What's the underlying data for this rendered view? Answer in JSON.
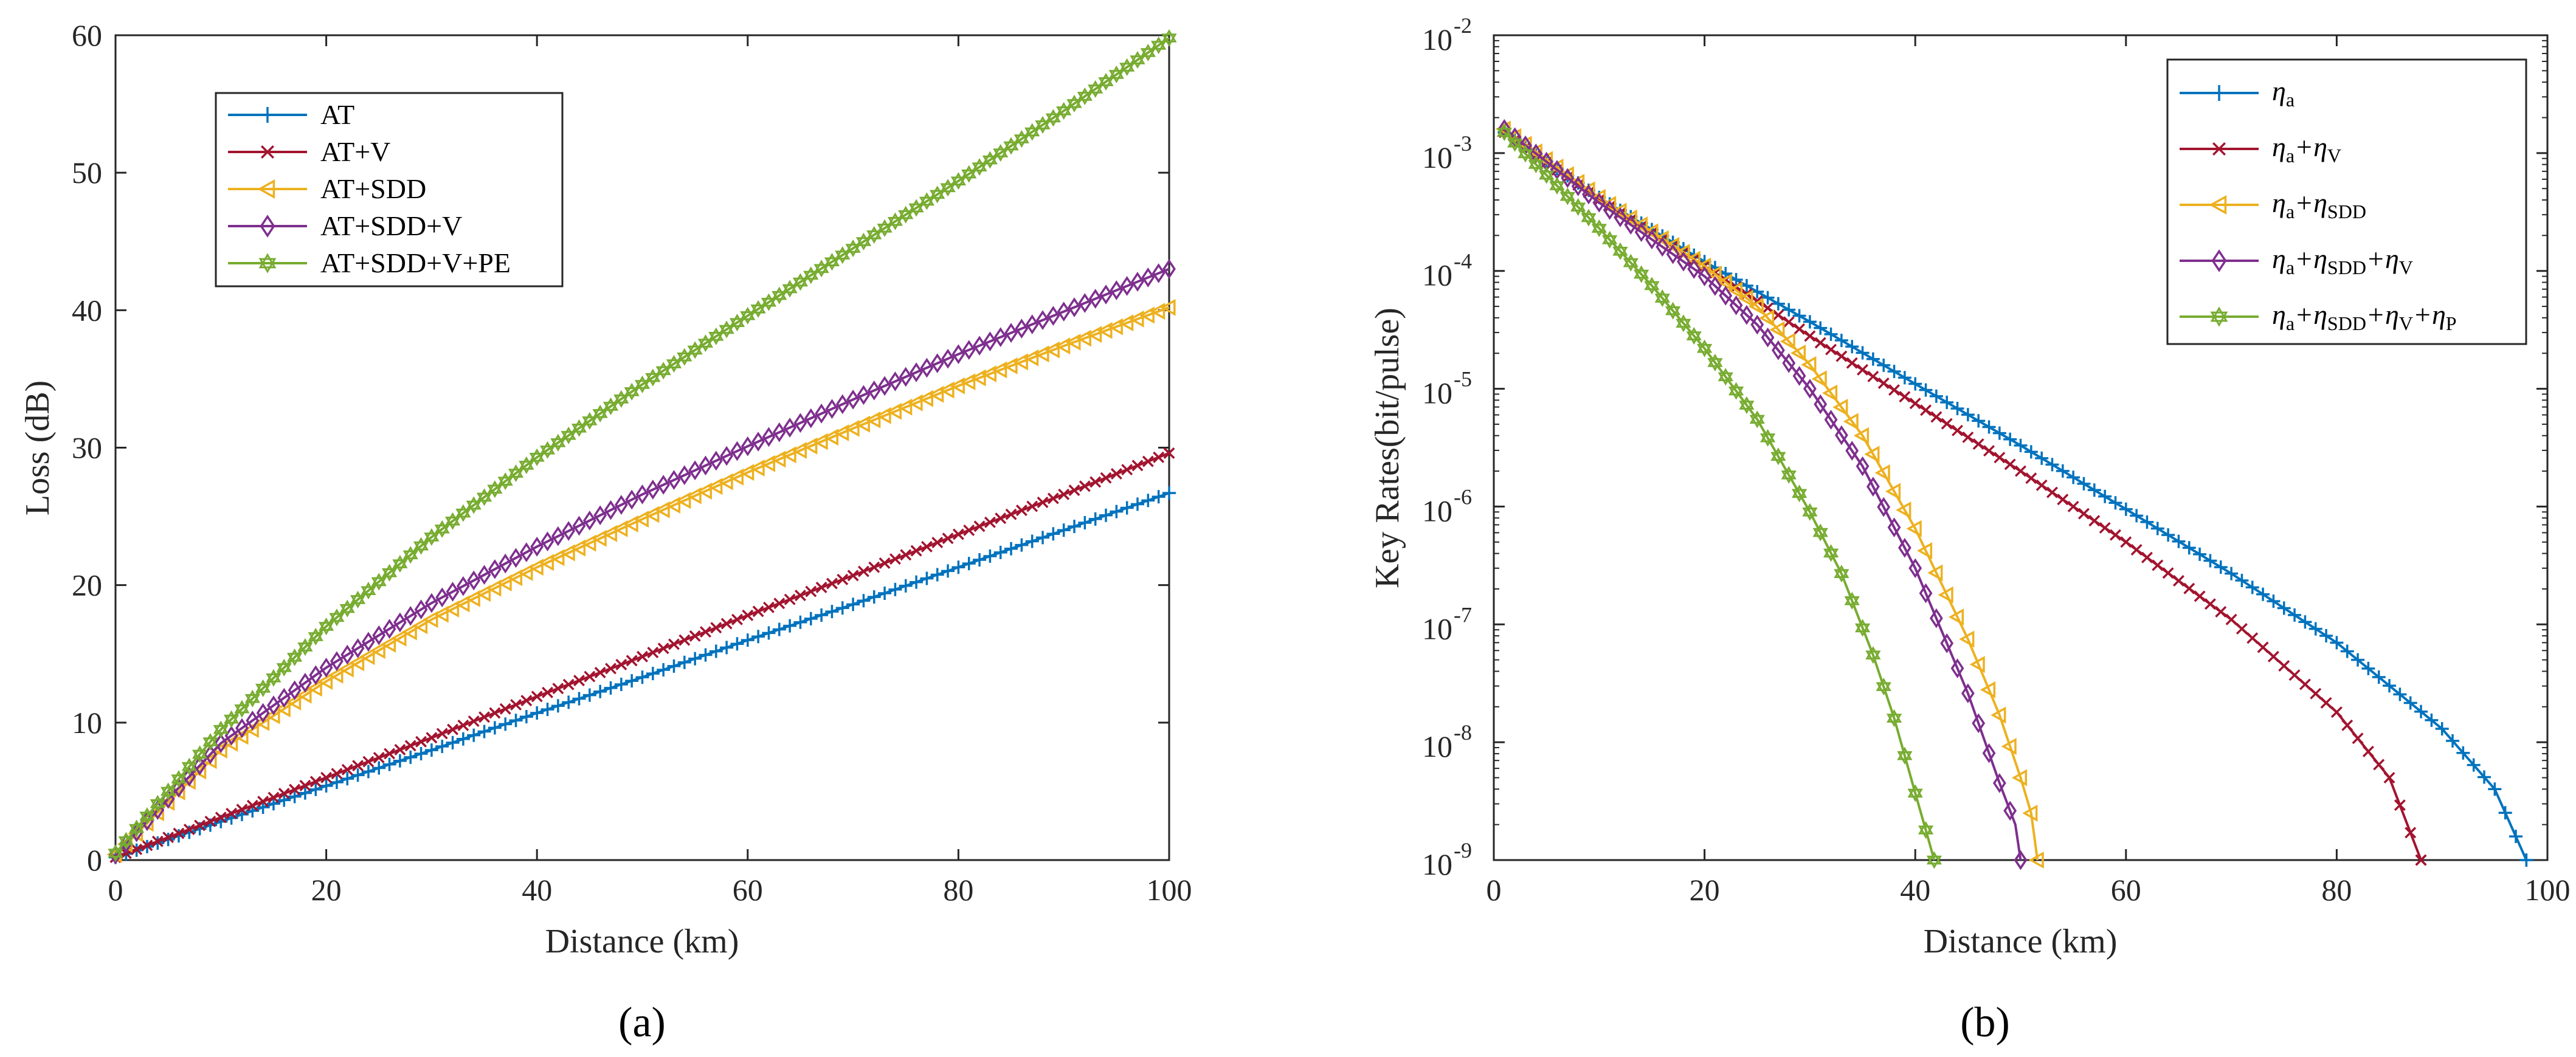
{
  "panels": {
    "a": {
      "label": "(a)"
    },
    "b": {
      "label": "(b)"
    }
  },
  "chart_data": [
    {
      "id": "a",
      "type": "line",
      "xlabel": "Distance (km)",
      "ylabel": "Loss (dB)",
      "xlim": [
        0,
        100
      ],
      "ylim": [
        0,
        60
      ],
      "xticks": [
        "0",
        "20",
        "40",
        "60",
        "80",
        "100"
      ],
      "yticks": [
        "0",
        "10",
        "20",
        "30",
        "40",
        "50",
        "60"
      ],
      "legend_position": "top-left",
      "x": [
        0,
        10,
        20,
        30,
        40,
        50,
        60,
        70,
        80,
        90,
        100
      ],
      "series": [
        {
          "name": "AT",
          "color": "#0072BD",
          "marker": "plus",
          "values": [
            0.2,
            2.8,
            5.4,
            8.0,
            10.7,
            13.3,
            16.0,
            18.6,
            21.3,
            24.0,
            26.7
          ]
        },
        {
          "name": "AT+V",
          "color": "#A2142F",
          "marker": "cross",
          "values": [
            0.2,
            3.1,
            6.0,
            8.9,
            11.9,
            14.8,
            17.8,
            20.7,
            23.7,
            26.6,
            29.6
          ]
        },
        {
          "name": "AT+SDD",
          "color": "#EDB120",
          "marker": "triangle-left",
          "values": [
            0.4,
            8.0,
            13.0,
            17.5,
            21.3,
            24.8,
            28.2,
            31.4,
            34.5,
            37.4,
            40.2
          ]
        },
        {
          "name": "AT+SDD+V",
          "color": "#7E2F8E",
          "marker": "diamond",
          "values": [
            0.4,
            8.5,
            14.0,
            18.7,
            22.8,
            26.6,
            30.1,
            33.5,
            36.8,
            39.9,
            43.0
          ]
        },
        {
          "name": "AT+SDD+V+PE",
          "color": "#77AC30",
          "marker": "hexagram",
          "values": [
            0.5,
            9.5,
            17.0,
            23.5,
            29.3,
            34.6,
            39.6,
            44.5,
            49.4,
            54.5,
            59.8
          ]
        }
      ]
    },
    {
      "id": "b",
      "type": "line",
      "xlabel": "Distance (km)",
      "ylabel": "Key Rates(bit/pulse)",
      "xlim": [
        0,
        100
      ],
      "ylim": [
        1e-09,
        0.01
      ],
      "yscale": "log",
      "xticks": [
        "0",
        "20",
        "40",
        "60",
        "80",
        "100"
      ],
      "ytick_exponents": [
        "-9",
        "-8",
        "-7",
        "-6",
        "-5",
        "-4",
        "-3",
        "-2"
      ],
      "ytick_base": "10",
      "legend_position": "top-right",
      "series": [
        {
          "name_base": "η",
          "name_sub": "a",
          "color": "#0072BD",
          "marker": "plus",
          "x": [
            1,
            10,
            20,
            30,
            40,
            50,
            60,
            70,
            80,
            90,
            95,
            98
          ],
          "values": [
            0.0015,
            0.00042,
            0.00012,
            3.7e-05,
            1.1e-05,
            3.3e-06,
            9.5e-07,
            2.7e-07,
            7e-08,
            1.3e-08,
            4e-09,
            1e-09
          ]
        },
        {
          "name_base": "η",
          "name_sub": "a",
          "name_extra": "+η",
          "name_extra_sub": "V",
          "color": "#A2142F",
          "marker": "cross",
          "x": [
            1,
            10,
            20,
            30,
            40,
            50,
            60,
            70,
            80,
            85,
            88
          ],
          "values": [
            0.0015,
            0.0004,
            0.00011,
            2.8e-05,
            7.5e-06,
            2e-06,
            5e-07,
            1.1e-07,
            1.8e-08,
            5e-09,
            1e-09
          ]
        },
        {
          "name_base": "η",
          "name_sub": "a",
          "name_extra": "+η",
          "name_extra_sub": "SDD",
          "color": "#EDB120",
          "marker": "triangle-left",
          "x": [
            1,
            10,
            20,
            25,
            30,
            35,
            40,
            45,
            48,
            50,
            51,
            51.6
          ],
          "values": [
            0.0016,
            0.00042,
            0.00011,
            5e-05,
            1.6e-05,
            4e-06,
            6.5e-07,
            7.5e-08,
            1.7e-08,
            5e-09,
            2.5e-09,
            1e-09
          ]
        },
        {
          "name_base": "η",
          "name_sub": "a",
          "name_extra": "+η",
          "name_extra_sub": "SDD",
          "name_extra2": "+η",
          "name_extra2_sub": "V",
          "color": "#7E2F8E",
          "marker": "diamond",
          "x": [
            1,
            10,
            20,
            25,
            30,
            35,
            40,
            45,
            48,
            49.5,
            50
          ],
          "values": [
            0.0016,
            0.00038,
            9e-05,
            3.5e-05,
            1e-05,
            2.2e-06,
            3e-07,
            2.6e-08,
            4.5e-09,
            2e-09,
            1e-09
          ]
        },
        {
          "name_base": "η",
          "name_sub": "a",
          "name_extra": "+η",
          "name_extra_sub": "SDD",
          "name_extra2": "+η",
          "name_extra2_sub": "V",
          "name_extra3": "+η",
          "name_extra3_sub": "P",
          "color": "#77AC30",
          "marker": "hexagram",
          "x": [
            1,
            5,
            10,
            15,
            20,
            25,
            30,
            33,
            36,
            38,
            40,
            41,
            41.8
          ],
          "values": [
            0.0015,
            0.00065,
            0.00023,
            7.5e-05,
            2.2e-05,
            5.5e-06,
            9e-07,
            2.7e-07,
            5.5e-08,
            1.6e-08,
            3.7e-09,
            1.8e-09,
            1e-09
          ]
        }
      ]
    }
  ]
}
